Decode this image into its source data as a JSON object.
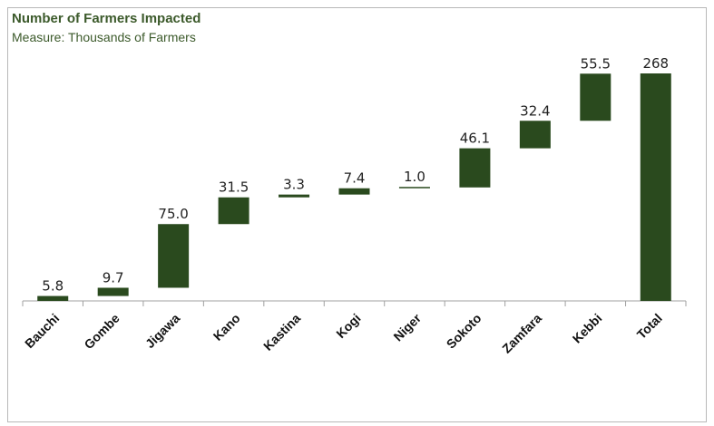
{
  "chart_data": {
    "type": "bar",
    "subtype": "waterfall",
    "title": "Number of Farmers Impacted",
    "subtitle": "Measure: Thousands of Farmers",
    "categories": [
      "Bauchi",
      "Gombe",
      "Jigawa",
      "Kano",
      "Kastina",
      "Kogi",
      "Niger",
      "Sokoto",
      "Zamfara",
      "Kebbi",
      "Total"
    ],
    "values": [
      5.8,
      9.7,
      75.0,
      31.5,
      3.3,
      7.4,
      1.0,
      46.1,
      32.4,
      55.5,
      268
    ],
    "data_labels": [
      "5.8",
      "9.7",
      "75.0",
      "31.5",
      "3.3",
      "7.4",
      "1.0",
      "46.1",
      "32.4",
      "55.5",
      "268"
    ],
    "ylim": [
      0,
      268
    ],
    "grid": false,
    "bar_color": "#2a4a1e",
    "title_color": "#3c5a2b"
  }
}
